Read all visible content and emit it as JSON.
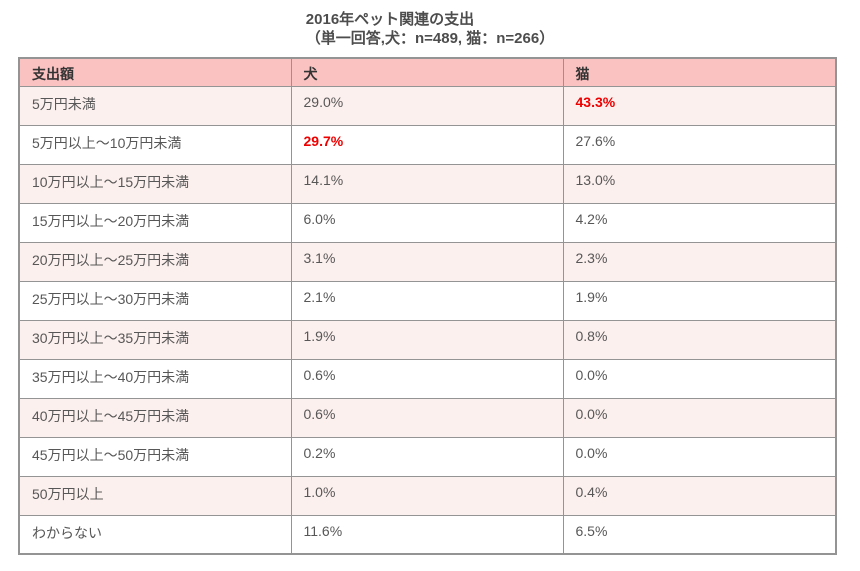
{
  "title": {
    "line1": "2016年ペット関連の支出",
    "line2": "（単一回答,犬：n=489, 猫：n=266）"
  },
  "table": {
    "columns": [
      "支出額",
      "犬",
      "猫"
    ],
    "rows": [
      {
        "label": "5万円未満",
        "dog": "29.0%",
        "cat": "43.3%",
        "dog_highlight": false,
        "cat_highlight": true
      },
      {
        "label": "5万円以上～10万円未満",
        "dog": "29.7%",
        "cat": "27.6%",
        "dog_highlight": true,
        "cat_highlight": false
      },
      {
        "label": "10万円以上～15万円未満",
        "dog": "14.1%",
        "cat": "13.0%",
        "dog_highlight": false,
        "cat_highlight": false
      },
      {
        "label": "15万円以上～20万円未満",
        "dog": "6.0%",
        "cat": "4.2%",
        "dog_highlight": false,
        "cat_highlight": false
      },
      {
        "label": "20万円以上～25万円未満",
        "dog": "3.1%",
        "cat": "2.3%",
        "dog_highlight": false,
        "cat_highlight": false
      },
      {
        "label": "25万円以上～30万円未満",
        "dog": "2.1%",
        "cat": "1.9%",
        "dog_highlight": false,
        "cat_highlight": false
      },
      {
        "label": "30万円以上～35万円未満",
        "dog": "1.9%",
        "cat": "0.8%",
        "dog_highlight": false,
        "cat_highlight": false
      },
      {
        "label": "35万円以上～40万円未満",
        "dog": "0.6%",
        "cat": "0.0%",
        "dog_highlight": false,
        "cat_highlight": false
      },
      {
        "label": "40万円以上～45万円未満",
        "dog": "0.6%",
        "cat": "0.0%",
        "dog_highlight": false,
        "cat_highlight": false
      },
      {
        "label": "45万円以上～50万円未満",
        "dog": "0.2%",
        "cat": "0.0%",
        "dog_highlight": false,
        "cat_highlight": false
      },
      {
        "label": "50万円以上",
        "dog": "1.0%",
        "cat": "0.4%",
        "dog_highlight": false,
        "cat_highlight": false
      },
      {
        "label": "わからない",
        "dog": "11.6%",
        "cat": "6.5%",
        "dog_highlight": false,
        "cat_highlight": false
      }
    ]
  },
  "colors": {
    "header_background": "#fbc2c2",
    "row_alternate_background": "#fcf0ee",
    "row_background": "#ffffff",
    "border": "#949494",
    "highlight_red": "#ee0000",
    "text": "#575757",
    "header_text": "#333333",
    "title_text": "#4d4d4d"
  },
  "chart_data": {
    "type": "table",
    "title": "2016年ペット関連の支出",
    "subtitle": "（単一回答,犬：n=489, 猫：n=266）",
    "categories": [
      "5万円未満",
      "5万円以上～10万円未満",
      "10万円以上～15万円未満",
      "15万円以上～20万円未満",
      "20万円以上～25万円未満",
      "25万円以上～30万円未満",
      "30万円以上～35万円未満",
      "35万円以上～40万円未満",
      "40万円以上～45万円未満",
      "45万円以上～50万円未満",
      "50万円以上",
      "わからない"
    ],
    "series": [
      {
        "name": "犬",
        "n": 489,
        "values": [
          29.0,
          29.7,
          14.1,
          6.0,
          3.1,
          2.1,
          1.9,
          0.6,
          0.6,
          0.2,
          1.0,
          11.6
        ]
      },
      {
        "name": "猫",
        "n": 266,
        "values": [
          43.3,
          27.6,
          13.0,
          4.2,
          2.3,
          1.9,
          0.8,
          0.0,
          0.0,
          0.0,
          0.4,
          6.5
        ]
      }
    ],
    "unit": "%",
    "highlighted_values": [
      {
        "series": "猫",
        "category": "5万円未満",
        "value": 43.3
      },
      {
        "series": "犬",
        "category": "5万円以上～10万円未満",
        "value": 29.7
      }
    ]
  }
}
